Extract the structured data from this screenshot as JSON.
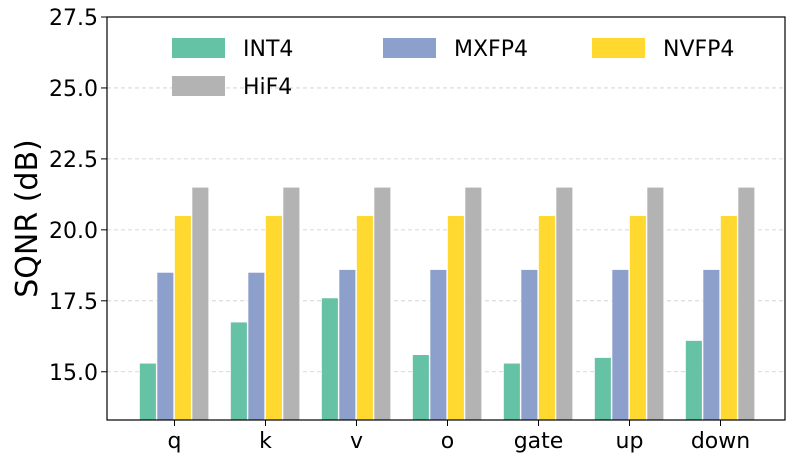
{
  "chart_data": {
    "type": "bar",
    "title": "",
    "xlabel": "",
    "ylabel": "SQNR (dB)",
    "ylim": [
      13.3,
      27.5
    ],
    "yticks": [
      "15.0",
      "17.5",
      "20.0",
      "22.5",
      "25.0",
      "27.5"
    ],
    "ytick_values": [
      15.0,
      17.5,
      20.0,
      22.5,
      25.0,
      27.5
    ],
    "grid": "horizontal, dashed",
    "legend_position": "top",
    "categories": [
      "q",
      "k",
      "v",
      "o",
      "gate",
      "up",
      "down"
    ],
    "series": [
      {
        "name": "INT4",
        "color": "#66c2a5",
        "values": [
          15.3,
          16.75,
          17.6,
          15.6,
          15.3,
          15.5,
          16.1
        ]
      },
      {
        "name": "MXFP4",
        "color": "#8da0cb",
        "values": [
          18.5,
          18.5,
          18.6,
          18.6,
          18.6,
          18.6,
          18.6
        ]
      },
      {
        "name": "NVFP4",
        "color": "#ffd92f",
        "values": [
          20.5,
          20.5,
          20.5,
          20.5,
          20.5,
          20.5,
          20.5
        ]
      },
      {
        "name": "HiF4",
        "color": "#b3b3b3",
        "values": [
          21.5,
          21.5,
          21.5,
          21.5,
          21.5,
          21.5,
          21.5
        ]
      }
    ]
  }
}
